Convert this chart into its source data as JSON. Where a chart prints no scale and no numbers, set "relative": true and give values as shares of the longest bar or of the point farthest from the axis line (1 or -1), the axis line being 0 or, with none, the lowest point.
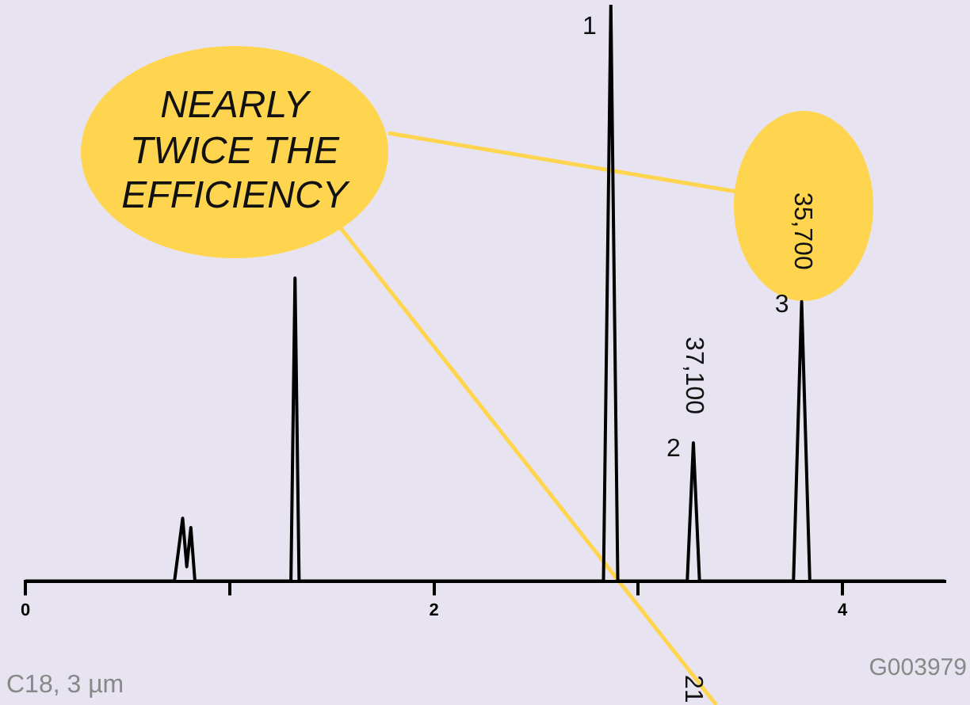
{
  "chart_data": {
    "type": "line",
    "relative": true,
    "x": [
      0,
      0.73,
      0.77,
      0.79,
      0.81,
      0.83,
      1.3,
      1.32,
      1.34,
      2.83,
      2.866,
      2.9,
      3.24,
      3.27,
      3.3,
      3.76,
      3.8,
      3.84,
      4.5
    ],
    "series": [
      {
        "color": "#000000",
        "values": [
          0,
          0,
          0.109,
          0.025,
          0.093,
          0,
          0,
          0.526,
          0,
          0,
          1,
          0,
          0,
          0.24,
          0,
          0,
          0.485,
          0,
          0
        ]
      }
    ],
    "xlim": [
      0,
      4.5
    ],
    "xticks": [
      0,
      {
        "value": 1,
        "label": null
      },
      2,
      {
        "value": 3,
        "label": null
      },
      4
    ],
    "grid": false,
    "legend": false,
    "marker": "none",
    "annotations": [
      "NEARLY TWICE THE EFFICIENCY",
      {
        "text": "1",
        "x": 2.866,
        "y": 1
      },
      {
        "text": "2",
        "x": 3.27,
        "y": 0.24
      },
      {
        "text": "3",
        "x": 3.8,
        "y": 0.485
      },
      {
        "text": "37,100",
        "x": 3.27,
        "y": 0.24
      },
      {
        "text": "35,700",
        "x": 3.8,
        "y": 0.485
      },
      "21",
      "G003979",
      "C18, 3 µm"
    ]
  }
}
